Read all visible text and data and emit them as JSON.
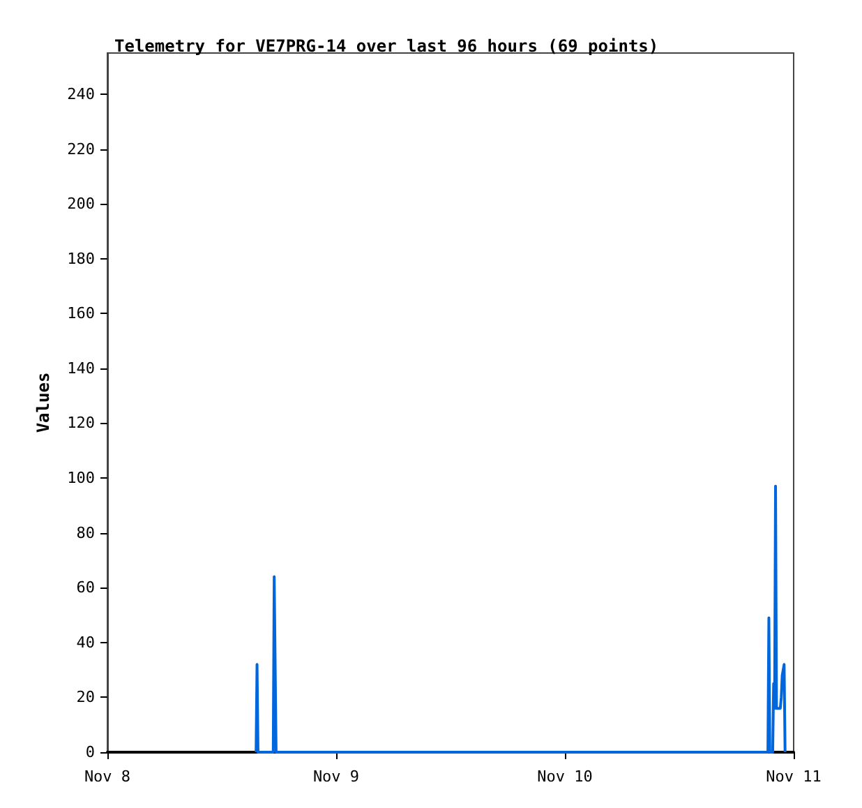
{
  "chart_data": {
    "type": "line",
    "title": "Telemetry for VE7PRG-14 over last 96 hours (69 points)",
    "ylabel": "Values",
    "xlim": [
      "--11-08",
      "--11-11"
    ],
    "xticks": [
      {
        "value": "--11-08",
        "label": "Nov 8"
      },
      {
        "value": "--11-09",
        "label": "Nov 9"
      },
      {
        "value": "--11-10",
        "label": "Nov 10"
      },
      {
        "value": "--11-11",
        "label": "Nov 11"
      }
    ],
    "ylim": [
      0,
      255
    ],
    "yticks": [
      0,
      20,
      40,
      60,
      80,
      100,
      120,
      140,
      160,
      180,
      200,
      220,
      240
    ],
    "grid": false,
    "marker": "none",
    "line_style": "solid",
    "series": [
      {
        "color": "#0066dd",
        "x": [
          "--11-08T15:36",
          "--11-08T15:42",
          "--11-08T15:48",
          "--11-08T17:24",
          "--11-08T17:30",
          "--11-08T17:36",
          "--11-08T17:42",
          "--11-10T21:18",
          "--11-10T21:24",
          "--11-10T21:30",
          "--11-10T21:48",
          "--11-10T21:54",
          "--11-10T22:00",
          "--11-10T22:06",
          "--11-10T22:12",
          "--11-10T22:36",
          "--11-10T22:42",
          "--11-10T22:48",
          "--11-10T23:00",
          "--11-10T23:03",
          "--11-10T23:06"
        ],
        "values": [
          0,
          32,
          0,
          0,
          64,
          64,
          0,
          0,
          49,
          0,
          0,
          25,
          16,
          97,
          16,
          16,
          20,
          28,
          32,
          16,
          0
        ]
      }
    ]
  }
}
